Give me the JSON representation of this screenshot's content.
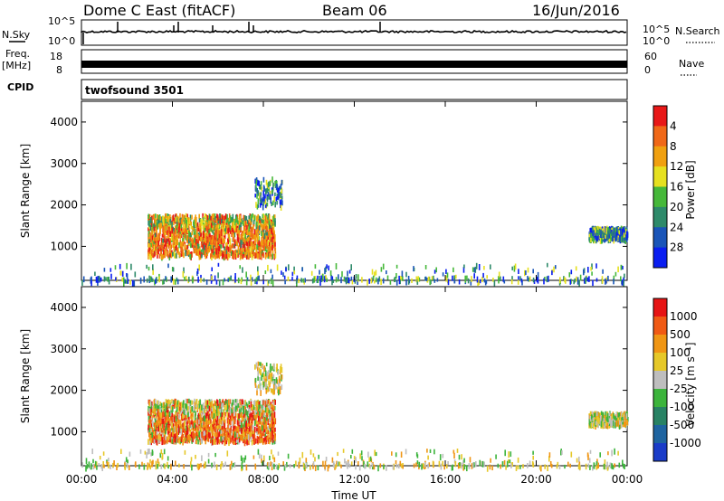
{
  "header": {
    "station": "Dome C East (fitACF)",
    "beam": "Beam 06",
    "date": "16/Jun/2016"
  },
  "ancillary": {
    "nsky_label": "N.Sky",
    "nsearch_label": "N.Search",
    "nsky_ticks": [
      "10^5",
      "10^0"
    ],
    "nsearch_ticks": [
      "10^5",
      "10^0"
    ],
    "freq_label_line1": "Freq.",
    "freq_label_line2": "[MHz]",
    "freq_ticks": [
      "18",
      "8"
    ],
    "nave_label": "Nave",
    "nave_ticks": [
      "60",
      "0"
    ],
    "cpid_label": "CPID",
    "cpid_value": "twofsound 3501"
  },
  "chart_data": [
    {
      "type": "heatmap",
      "name": "power",
      "xlabel": "Time UT",
      "ylabel": "Slant Range [km]",
      "xlim": [
        0,
        24
      ],
      "ylim": [
        180,
        4500
      ],
      "y_ticks": [
        1000,
        2000,
        3000,
        4000
      ],
      "colorbar": {
        "label": "Power [dB]",
        "ticks": [
          "4",
          "8",
          "12",
          "16",
          "20",
          "24",
          "28"
        ],
        "colors": [
          "#0a1ef0",
          "#1a55b8",
          "#2e8a6a",
          "#46b83a",
          "#e6e020",
          "#f0a010",
          "#f06818",
          "#e81818"
        ]
      },
      "scatter_regions": [
        {
          "t_start": 2.9,
          "t_end": 8.5,
          "r_low": 800,
          "r_high": 1800,
          "intensity": "high"
        },
        {
          "t_start": 7.6,
          "t_end": 8.8,
          "r_low": 2000,
          "r_high": 2700,
          "intensity": "low"
        },
        {
          "t_start": 22.3,
          "t_end": 24.0,
          "r_low": 1200,
          "r_high": 1500,
          "intensity": "low"
        },
        {
          "t_start": 0.0,
          "t_end": 24.0,
          "r_low": 180,
          "r_high": 600,
          "intensity": "low"
        }
      ]
    },
    {
      "type": "heatmap",
      "name": "velocity",
      "xlabel": "Time UT",
      "ylabel": "Slant Range [km]",
      "xlim": [
        0,
        24
      ],
      "ylim": [
        180,
        4500
      ],
      "y_ticks": [
        1000,
        2000,
        3000,
        4000
      ],
      "colorbar": {
        "label": "Velocity [m s⁻¹]",
        "ticks": [
          "1000",
          "500",
          "100",
          "25",
          "-25",
          "-100",
          "-500",
          "-1000"
        ],
        "colors": [
          "#1a3cc8",
          "#1e64a0",
          "#288264",
          "#3cb43c",
          "#bebebe",
          "#e6c828",
          "#f09614",
          "#f05a14",
          "#e61414"
        ]
      },
      "scatter_regions": [
        {
          "t_start": 2.9,
          "t_end": 8.5,
          "r_low": 800,
          "r_high": 1800,
          "intensity": "high"
        },
        {
          "t_start": 7.6,
          "t_end": 8.8,
          "r_low": 2000,
          "r_high": 2700,
          "intensity": "low"
        },
        {
          "t_start": 22.3,
          "t_end": 24.0,
          "r_low": 1200,
          "r_high": 1500,
          "intensity": "low"
        },
        {
          "t_start": 0.0,
          "t_end": 24.0,
          "r_low": 180,
          "r_high": 600,
          "intensity": "low"
        }
      ]
    }
  ],
  "x_axis": {
    "label": "Time UT",
    "ticks": [
      "00:00",
      "04:00",
      "08:00",
      "12:00",
      "16:00",
      "20:00",
      "00:00"
    ]
  }
}
